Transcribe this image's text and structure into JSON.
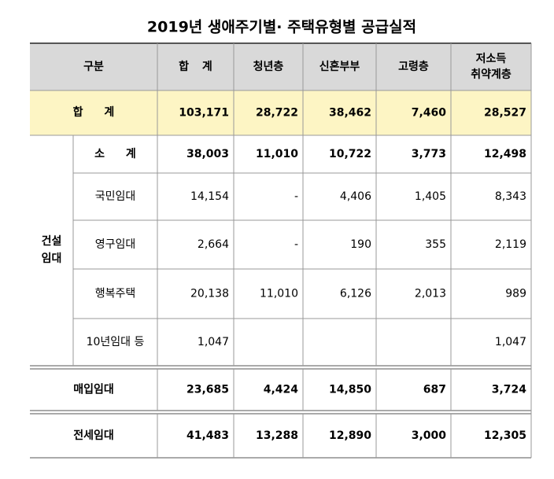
{
  "title": "2019년 생애주기별· 주택유형별 공급실적",
  "table": {
    "header": {
      "category": "구분",
      "columns": [
        [
          "합 계"
        ],
        [
          "청년층"
        ],
        [
          "신혼부부"
        ],
        [
          "고령층"
        ],
        [
          "저소득",
          "취약계층"
        ]
      ]
    },
    "total": {
      "label": "합 계",
      "values": [
        "103,171",
        "28,722",
        "38,462",
        "7,460",
        "28,527"
      ]
    },
    "construction": {
      "label": [
        "건설",
        "임대"
      ],
      "rows": [
        {
          "label": "소 계",
          "values": [
            "38,003",
            "11,010",
            "10,722",
            "3,773",
            "12,498"
          ]
        },
        {
          "label": "국민임대",
          "values": [
            "14,154",
            "-",
            "4,406",
            "1,405",
            "8,343"
          ]
        },
        {
          "label": "영구임대",
          "values": [
            "2,664",
            "-",
            "190",
            "355",
            "2,119"
          ]
        },
        {
          "label": "행복주택",
          "values": [
            "20,138",
            "11,010",
            "6,126",
            "2,013",
            "989"
          ]
        },
        {
          "label": "10년임대 등",
          "values": [
            "1,047",
            null,
            null,
            null,
            "1,047"
          ]
        }
      ]
    },
    "purchase": {
      "label": "매입임대",
      "values": [
        "23,685",
        "4,424",
        "14,850",
        "687",
        "3,724"
      ]
    },
    "jeonse": {
      "label": "전세임대",
      "values": [
        "41,483",
        "13,288",
        "12,890",
        "3,000",
        "12,305"
      ]
    }
  }
}
